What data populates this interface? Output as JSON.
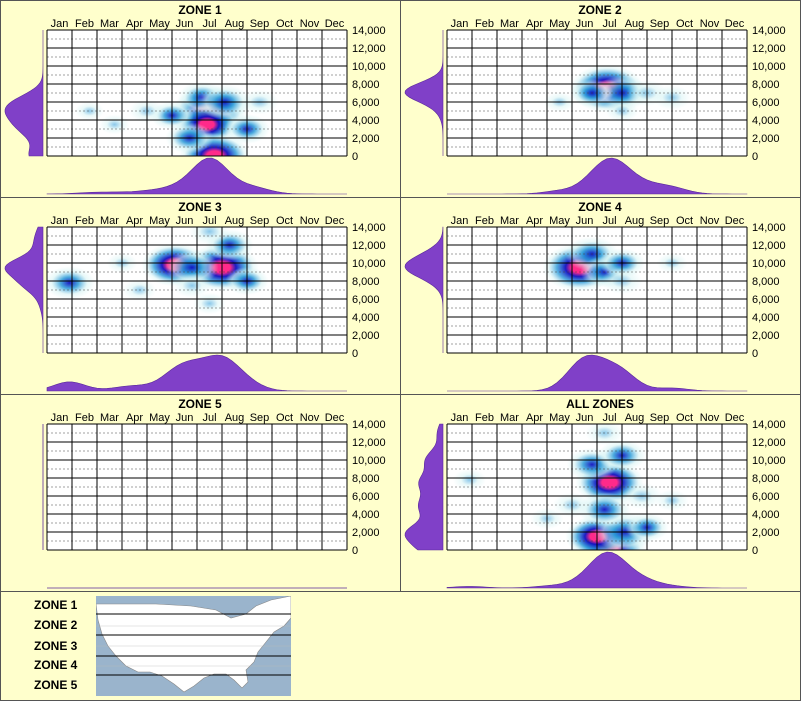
{
  "months": [
    "Jan",
    "Feb",
    "Mar",
    "Apr",
    "May",
    "Jun",
    "Jul",
    "Aug",
    "Sep",
    "Oct",
    "Nov",
    "Dec"
  ],
  "y_ticks": [
    "14,000",
    "12,000",
    "10,000",
    "8,000",
    "6,000",
    "4,000",
    "2,000",
    "0"
  ],
  "colors": {
    "background": "#ffffcc",
    "distribution": "#8040c8",
    "heat_low": "#d8f4f4",
    "heat_mid": "#2a9ad8",
    "heat_high": "#1010c0",
    "heat_peak": "#ff2a8a"
  },
  "chart_data": [
    {
      "type": "heatmap",
      "title": "ZONE 1",
      "x": "month",
      "y_range": [
        0,
        14000
      ],
      "hotspots": [
        {
          "month": 7.0,
          "elev": 5000,
          "intensity": 1.0
        },
        {
          "month": 6.9,
          "elev": 3500,
          "intensity": 0.8
        },
        {
          "month": 7.2,
          "elev": 0,
          "intensity": 0.95
        },
        {
          "month": 6.7,
          "elev": 6500,
          "intensity": 0.5
        },
        {
          "month": 7.6,
          "elev": 6000,
          "intensity": 0.6
        },
        {
          "month": 8.5,
          "elev": 3000,
          "intensity": 0.45
        },
        {
          "month": 5.5,
          "elev": 4500,
          "intensity": 0.4
        },
        {
          "month": 4.5,
          "elev": 5000,
          "intensity": 0.25
        },
        {
          "month": 3.2,
          "elev": 3500,
          "intensity": 0.15
        },
        {
          "month": 2.2,
          "elev": 5000,
          "intensity": 0.12
        },
        {
          "month": 9.0,
          "elev": 6000,
          "intensity": 0.3
        },
        {
          "month": 6.2,
          "elev": 2000,
          "intensity": 0.5
        }
      ]
    },
    {
      "type": "heatmap",
      "title": "ZONE 2",
      "x": "month",
      "y_range": [
        0,
        14000
      ],
      "hotspots": [
        {
          "month": 6.9,
          "elev": 7500,
          "intensity": 1.0
        },
        {
          "month": 7.5,
          "elev": 7000,
          "intensity": 0.6
        },
        {
          "month": 8.5,
          "elev": 7000,
          "intensity": 0.35
        },
        {
          "month": 9.5,
          "elev": 6500,
          "intensity": 0.3
        },
        {
          "month": 6.3,
          "elev": 7000,
          "intensity": 0.4
        },
        {
          "month": 5.0,
          "elev": 6000,
          "intensity": 0.15
        },
        {
          "month": 7.5,
          "elev": 5000,
          "intensity": 0.2
        }
      ]
    },
    {
      "type": "heatmap",
      "title": "ZONE 3",
      "x": "month",
      "y_range": [
        0,
        14000
      ],
      "hotspots": [
        {
          "month": 7.5,
          "elev": 9500,
          "intensity": 1.0
        },
        {
          "month": 5.6,
          "elev": 9800,
          "intensity": 0.85
        },
        {
          "month": 6.3,
          "elev": 9500,
          "intensity": 0.6
        },
        {
          "month": 7.8,
          "elev": 12000,
          "intensity": 0.5
        },
        {
          "month": 7.0,
          "elev": 13500,
          "intensity": 0.35
        },
        {
          "month": 1.4,
          "elev": 7800,
          "intensity": 0.55
        },
        {
          "month": 8.5,
          "elev": 8000,
          "intensity": 0.4
        },
        {
          "month": 6.3,
          "elev": 7500,
          "intensity": 0.3
        },
        {
          "month": 4.2,
          "elev": 7000,
          "intensity": 0.2
        },
        {
          "month": 3.5,
          "elev": 10000,
          "intensity": 0.15
        },
        {
          "month": 7.0,
          "elev": 5500,
          "intensity": 0.2
        }
      ]
    },
    {
      "type": "heatmap",
      "title": "ZONE 4",
      "x": "month",
      "y_range": [
        0,
        14000
      ],
      "hotspots": [
        {
          "month": 5.8,
          "elev": 9500,
          "intensity": 1.0
        },
        {
          "month": 6.3,
          "elev": 11000,
          "intensity": 0.6
        },
        {
          "month": 6.8,
          "elev": 9000,
          "intensity": 0.5
        },
        {
          "month": 7.5,
          "elev": 10000,
          "intensity": 0.45
        },
        {
          "month": 7.5,
          "elev": 8000,
          "intensity": 0.35
        },
        {
          "month": 9.5,
          "elev": 10000,
          "intensity": 0.15
        }
      ]
    },
    {
      "type": "heatmap",
      "title": "ZONE 5",
      "x": "month",
      "y_range": [
        0,
        14000
      ],
      "hotspots": []
    },
    {
      "type": "heatmap",
      "title": "ALL ZONES",
      "x": "month",
      "y_range": [
        0,
        14000
      ],
      "hotspots": [
        {
          "month": 7.0,
          "elev": 0,
          "intensity": 1.0
        },
        {
          "month": 7.0,
          "elev": 7500,
          "intensity": 0.9
        },
        {
          "month": 6.5,
          "elev": 1500,
          "intensity": 0.8
        },
        {
          "month": 7.6,
          "elev": 2000,
          "intensity": 0.75
        },
        {
          "month": 6.3,
          "elev": 9500,
          "intensity": 0.55
        },
        {
          "month": 7.5,
          "elev": 10500,
          "intensity": 0.5
        },
        {
          "month": 6.8,
          "elev": 4500,
          "intensity": 0.6
        },
        {
          "month": 8.3,
          "elev": 6000,
          "intensity": 0.35
        },
        {
          "month": 8.5,
          "elev": 2500,
          "intensity": 0.4
        },
        {
          "month": 5.5,
          "elev": 5000,
          "intensity": 0.3
        },
        {
          "month": 4.5,
          "elev": 3500,
          "intensity": 0.2
        },
        {
          "month": 1.4,
          "elev": 7800,
          "intensity": 0.2
        },
        {
          "month": 6.8,
          "elev": 13000,
          "intensity": 0.3
        },
        {
          "month": 9.5,
          "elev": 5500,
          "intensity": 0.2
        }
      ]
    }
  ],
  "legend": {
    "zones": [
      "ZONE 1",
      "ZONE 2",
      "ZONE 3",
      "ZONE 4",
      "ZONE 5"
    ]
  }
}
